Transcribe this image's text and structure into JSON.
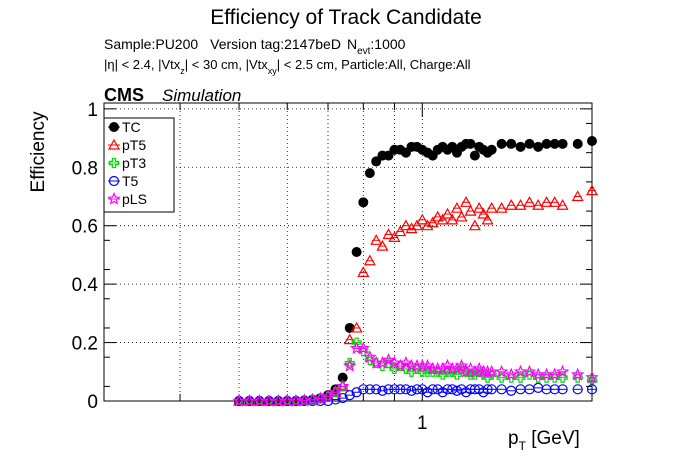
{
  "chart_data": {
    "type": "scatter",
    "title": "Efficiency of Track Candidate",
    "subtitle1": {
      "sample": "Sample:PU200",
      "version": "Version tag:2147beD",
      "nevt_base": "N",
      "nevt_sub": "evt",
      "nevt_val": ":1000"
    },
    "subtitle2": {
      "p1": "|η| < 2.4, |Vtx",
      "s1": "z",
      "p2": "| < 30 cm, |Vtx",
      "s2": "xy",
      "p3": "| < 2.5 cm, Particle:All, Charge:All"
    },
    "cms_label": "CMS",
    "sim_label": "Simulation",
    "xlabel": {
      "base": "p",
      "sub": "T",
      "rest": " [GeV]"
    },
    "ylabel": "Efficiency",
    "x_scale": "log",
    "xlim": [
      0.3,
      1.9
    ],
    "ylim": [
      0,
      1.02
    ],
    "x_tick_labels": [
      {
        "v": 1.0,
        "label": "1"
      }
    ],
    "y_ticks": [
      {
        "v": 0,
        "label": "0"
      },
      {
        "v": 0.2,
        "label": "0.2"
      },
      {
        "v": 0.4,
        "label": "0.4"
      },
      {
        "v": 0.6,
        "label": "0.6"
      },
      {
        "v": 0.8,
        "label": "0.8"
      },
      {
        "v": 1.0,
        "label": "1"
      }
    ],
    "grid": true,
    "legend_position": "top-left",
    "x": [
      0.5,
      0.52,
      0.54,
      0.56,
      0.58,
      0.6,
      0.62,
      0.64,
      0.66,
      0.68,
      0.7,
      0.72,
      0.74,
      0.76,
      0.78,
      0.8,
      0.82,
      0.84,
      0.86,
      0.88,
      0.9,
      0.92,
      0.94,
      0.96,
      0.98,
      1.0,
      1.02,
      1.04,
      1.06,
      1.08,
      1.1,
      1.12,
      1.14,
      1.16,
      1.18,
      1.2,
      1.22,
      1.24,
      1.26,
      1.28,
      1.3,
      1.35,
      1.4,
      1.45,
      1.5,
      1.55,
      1.6,
      1.65,
      1.7,
      1.8,
      1.9
    ],
    "series": [
      {
        "name": "TC",
        "marker": "filled-circle",
        "color": "#000000",
        "values": [
          0,
          0,
          0,
          0,
          0,
          0,
          0,
          0.002,
          0.005,
          0.01,
          0.02,
          0.04,
          0.08,
          0.25,
          0.51,
          0.68,
          0.78,
          0.82,
          0.84,
          0.84,
          0.86,
          0.86,
          0.85,
          0.87,
          0.87,
          0.86,
          0.85,
          0.84,
          0.86,
          0.87,
          0.86,
          0.87,
          0.85,
          0.87,
          0.88,
          0.88,
          0.84,
          0.87,
          0.86,
          0.85,
          0.86,
          0.88,
          0.88,
          0.87,
          0.88,
          0.87,
          0.88,
          0.88,
          0.88,
          0.88,
          0.89
        ]
      },
      {
        "name": "pT5",
        "marker": "open-triangle",
        "color": "#ff0000",
        "values": [
          0,
          0,
          0,
          0,
          0,
          0,
          0,
          0.002,
          0.004,
          0.008,
          0.015,
          0.03,
          0.05,
          0.21,
          0.25,
          0.44,
          0.48,
          0.55,
          0.53,
          0.57,
          0.56,
          0.58,
          0.6,
          0.59,
          0.6,
          0.62,
          0.6,
          0.61,
          0.63,
          0.62,
          0.64,
          0.62,
          0.66,
          0.63,
          0.68,
          0.65,
          0.6,
          0.66,
          0.64,
          0.62,
          0.66,
          0.66,
          0.67,
          0.67,
          0.68,
          0.67,
          0.68,
          0.68,
          0.67,
          0.7,
          0.72
        ]
      },
      {
        "name": "pT3",
        "marker": "open-cross",
        "color": "#00dd00",
        "values": [
          0,
          0,
          0,
          0,
          0,
          0,
          0,
          0.002,
          0.004,
          0.008,
          0.015,
          0.03,
          0.05,
          0.13,
          0.2,
          0.17,
          0.14,
          0.13,
          0.12,
          0.13,
          0.11,
          0.12,
          0.11,
          0.1,
          0.11,
          0.1,
          0.1,
          0.1,
          0.1,
          0.09,
          0.1,
          0.1,
          0.09,
          0.11,
          0.1,
          0.09,
          0.09,
          0.1,
          0.09,
          0.08,
          0.09,
          0.08,
          0.08,
          0.08,
          0.09,
          0.08,
          0.08,
          0.08,
          0.08,
          0.08,
          0.07
        ]
      },
      {
        "name": "T5",
        "marker": "open-circle",
        "color": "#0000ff",
        "values": [
          0,
          0,
          0,
          0,
          0,
          0,
          0,
          0,
          0,
          0,
          0,
          0.005,
          0.01,
          0.02,
          0.03,
          0.04,
          0.04,
          0.04,
          0.035,
          0.04,
          0.04,
          0.04,
          0.04,
          0.035,
          0.04,
          0.04,
          0.03,
          0.04,
          0.04,
          0.03,
          0.04,
          0.04,
          0.035,
          0.04,
          0.03,
          0.04,
          0.04,
          0.04,
          0.03,
          0.04,
          0.04,
          0.04,
          0.035,
          0.04,
          0.04,
          0.045,
          0.04,
          0.04,
          0.04,
          0.04,
          0.04
        ]
      },
      {
        "name": "pLS",
        "marker": "open-star",
        "color": "#ff00ff",
        "values": [
          0,
          0,
          0,
          0,
          0,
          0,
          0,
          0.002,
          0.004,
          0.008,
          0.015,
          0.03,
          0.05,
          0.12,
          0.18,
          0.18,
          0.15,
          0.13,
          0.13,
          0.14,
          0.13,
          0.12,
          0.13,
          0.12,
          0.12,
          0.12,
          0.12,
          0.11,
          0.11,
          0.11,
          0.12,
          0.11,
          0.11,
          0.12,
          0.1,
          0.11,
          0.1,
          0.11,
          0.1,
          0.1,
          0.1,
          0.1,
          0.09,
          0.1,
          0.1,
          0.09,
          0.09,
          0.09,
          0.1,
          0.09,
          0.08
        ]
      }
    ]
  }
}
